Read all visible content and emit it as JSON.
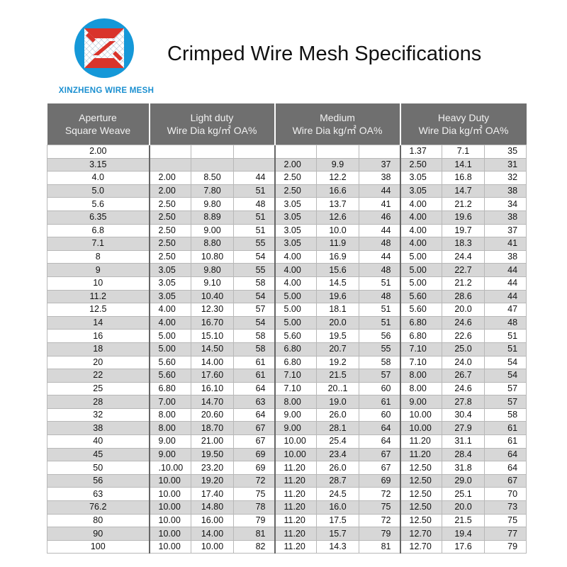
{
  "brand": {
    "name": "XINZHENG WIRE MESH",
    "logo_colors": {
      "circle": "#1598d8",
      "mark": "#d9342b"
    }
  },
  "page_title": "Crimped Wire Mesh Specifications",
  "table": {
    "headers": [
      {
        "line1": "Aperture",
        "line2": "Square Weave"
      },
      {
        "line1": "Light duty",
        "line2": "Wire Dia kg/㎡ OA%"
      },
      {
        "line1": "Medium",
        "line2": "Wire Dia kg/㎡ OA%"
      },
      {
        "line1": "Heavy Duty",
        "line2": "Wire Dia kg/㎡ OA%"
      }
    ],
    "rows": [
      [
        "2.00",
        "",
        "",
        "",
        "",
        "",
        "",
        "1.37",
        "7.1",
        "35"
      ],
      [
        "3.15",
        "",
        "",
        "",
        "2.00",
        "9.9",
        "37",
        "2.50",
        "14.1",
        "31"
      ],
      [
        "4.0",
        "2.00",
        "8.50",
        "44",
        "2.50",
        "12.2",
        "38",
        "3.05",
        "16.8",
        "32"
      ],
      [
        "5.0",
        "2.00",
        "7.80",
        "51",
        "2.50",
        "16.6",
        "44",
        "3.05",
        "14.7",
        "38"
      ],
      [
        "5.6",
        "2.50",
        "9.80",
        "48",
        "3.05",
        "13.7",
        "41",
        "4.00",
        "21.2",
        "34"
      ],
      [
        "6.35",
        "2.50",
        "8.89",
        "51",
        "3.05",
        "12.6",
        "46",
        "4.00",
        "19.6",
        "38"
      ],
      [
        "6.8",
        "2.50",
        "9.00",
        "51",
        "3.05",
        "10.0",
        "44",
        "4.00",
        "19.7",
        "37"
      ],
      [
        "7.1",
        "2.50",
        "8.80",
        "55",
        "3.05",
        "11.9",
        "48",
        "4.00",
        "18.3",
        "41"
      ],
      [
        "8",
        "2.50",
        "10.80",
        "54",
        "4.00",
        "16.9",
        "44",
        "5.00",
        "24.4",
        "38"
      ],
      [
        "9",
        "3.05",
        "9.80",
        "55",
        "4.00",
        "15.6",
        "48",
        "5.00",
        "22.7",
        "44"
      ],
      [
        "10",
        "3.05",
        "9.10",
        "58",
        "4.00",
        "14.5",
        "51",
        "5.00",
        "21.2",
        "44"
      ],
      [
        "11.2",
        "3.05",
        "10.40",
        "54",
        "5.00",
        "19.6",
        "48",
        "5.60",
        "28.6",
        "44"
      ],
      [
        "12.5",
        "4.00",
        "12.30",
        "57",
        "5.00",
        "18.1",
        "51",
        "5.60",
        "20.0",
        "47"
      ],
      [
        "14",
        "4.00",
        "16.70",
        "54",
        "5.00",
        "20.0",
        "51",
        "6.80",
        "24.6",
        "48"
      ],
      [
        "16",
        "5.00",
        "15.10",
        "58",
        "5.60",
        "19.5",
        "56",
        "6.80",
        "22.6",
        "51"
      ],
      [
        "18",
        "5.00",
        "14.50",
        "58",
        "6.80",
        "20.7",
        "55",
        "7.10",
        "25.0",
        "51"
      ],
      [
        "20",
        "5.60",
        "14.00",
        "61",
        "6.80",
        "19.2",
        "58",
        "7.10",
        "24.0",
        "54"
      ],
      [
        "22",
        "5.60",
        "17.60",
        "61",
        "7.10",
        "21.5",
        "57",
        "8.00",
        "26.7",
        "54"
      ],
      [
        "25",
        "6.80",
        "16.10",
        "64",
        "7.10",
        "20..1",
        "60",
        "8.00",
        "24.6",
        "57"
      ],
      [
        "28",
        "7.00",
        "14.70",
        "63",
        "8.00",
        "19.0",
        "61",
        "9.00",
        "27.8",
        "57"
      ],
      [
        "32",
        "8.00",
        "20.60",
        "64",
        "9.00",
        "26.0",
        "60",
        "10.00",
        "30.4",
        "58"
      ],
      [
        "38",
        "8.00",
        "18.70",
        "67",
        "9.00",
        "28.1",
        "64",
        "10.00",
        "27.9",
        "61"
      ],
      [
        "40",
        "9.00",
        "21.00",
        "67",
        "10.00",
        "25.4",
        "64",
        "11.20",
        "31.1",
        "61"
      ],
      [
        "45",
        "9.00",
        "19.50",
        "69",
        "10.00",
        "23.4",
        "67",
        "11.20",
        "28.4",
        "64"
      ],
      [
        "50",
        ".10.00",
        "23.20",
        "69",
        "11.20",
        "26.0",
        "67",
        "12.50",
        "31.8",
        "64"
      ],
      [
        "56",
        "10.00",
        "19.20",
        "72",
        "11.20",
        "28.7",
        "69",
        "12.50",
        "29.0",
        "67"
      ],
      [
        "63",
        "10.00",
        "17.40",
        "75",
        "11.20",
        "24.5",
        "72",
        "12.50",
        "25.1",
        "70"
      ],
      [
        "76.2",
        "10.00",
        "14.80",
        "78",
        "11.20",
        "16.0",
        "75",
        "12.50",
        "20.0",
        "73"
      ],
      [
        "80",
        "10.00",
        "16.00",
        "79",
        "11.20",
        "17.5",
        "72",
        "12.50",
        "21.5",
        "75"
      ],
      [
        "90",
        "10.00",
        "14.00",
        "81",
        "11.20",
        "15.7",
        "79",
        "12.70",
        "19.4",
        "77"
      ],
      [
        "100",
        "10.00",
        "10.00",
        "82",
        "11.20",
        "14.3",
        "81",
        "12.70",
        "17.6",
        "79"
      ]
    ]
  }
}
